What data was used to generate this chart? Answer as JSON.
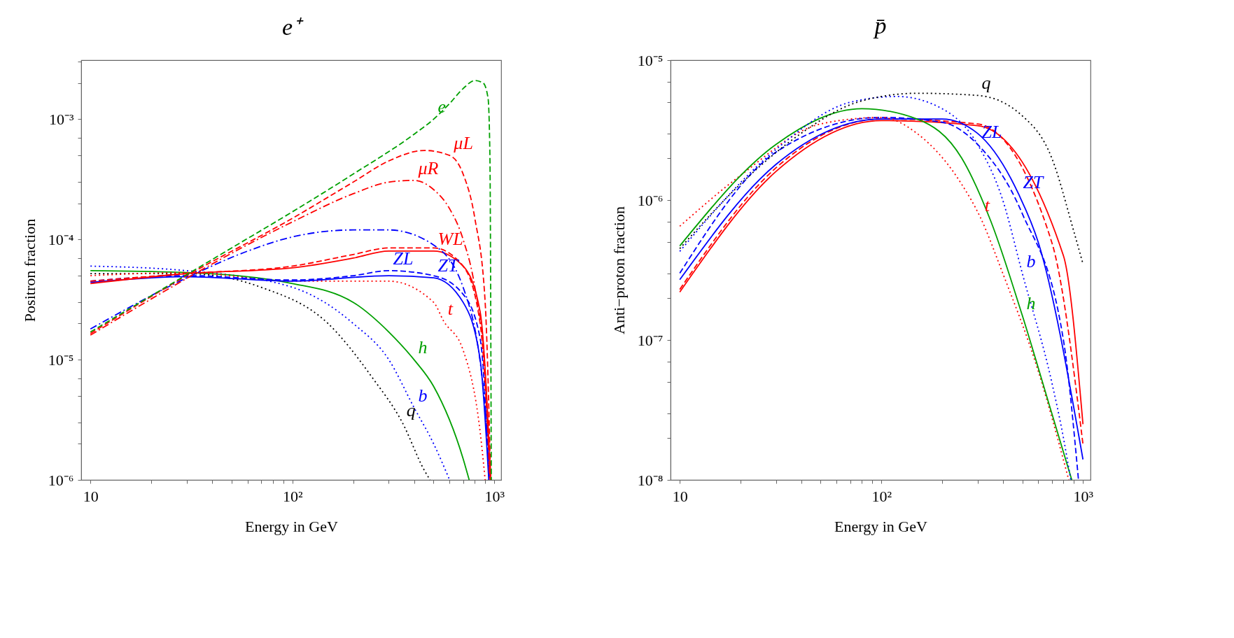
{
  "chart_data": [
    {
      "type": "line",
      "title": "e⁺",
      "xlabel": "Energy in GeV",
      "ylabel": "Positron fraction",
      "log": "xy",
      "grid": false,
      "marker": "none",
      "xlim": [
        9,
        1080
      ],
      "ylim": [
        1e-06,
        0.0031
      ],
      "xticks": [
        {
          "value": 10,
          "label": "10"
        },
        {
          "value": 20,
          "label": null
        },
        {
          "value": 30,
          "label": null
        },
        {
          "value": 40,
          "label": null
        },
        {
          "value": 50,
          "label": null
        },
        {
          "value": 60,
          "label": null
        },
        {
          "value": 70,
          "label": null
        },
        {
          "value": 80,
          "label": null
        },
        {
          "value": 90,
          "label": null
        },
        {
          "value": 100,
          "label": "10²"
        },
        {
          "value": 200,
          "label": null
        },
        {
          "value": 300,
          "label": null
        },
        {
          "value": 400,
          "label": null
        },
        {
          "value": 500,
          "label": null
        },
        {
          "value": 600,
          "label": null
        },
        {
          "value": 700,
          "label": null
        },
        {
          "value": 800,
          "label": null
        },
        {
          "value": 900,
          "label": null
        },
        {
          "value": 1000,
          "label": "10³"
        }
      ],
      "yticks": [
        {
          "value": 1e-06,
          "label": "10⁻⁶"
        },
        {
          "value": 2e-06,
          "label": null
        },
        {
          "value": 3e-06,
          "label": null
        },
        {
          "value": 5e-06,
          "label": null
        },
        {
          "value": 7e-06,
          "label": null
        },
        {
          "value": 1e-05,
          "label": "10⁻⁵"
        },
        {
          "value": 2e-05,
          "label": null
        },
        {
          "value": 3e-05,
          "label": null
        },
        {
          "value": 5e-05,
          "label": null
        },
        {
          "value": 7e-05,
          "label": null
        },
        {
          "value": 0.0001,
          "label": "10⁻⁴"
        },
        {
          "value": 0.0002,
          "label": null
        },
        {
          "value": 0.0003,
          "label": null
        },
        {
          "value": 0.0005,
          "label": null
        },
        {
          "value": 0.0007,
          "label": null
        },
        {
          "value": 0.001,
          "label": "10⁻³"
        },
        {
          "value": 0.002,
          "label": null
        },
        {
          "value": 0.003,
          "label": null
        }
      ],
      "series": [
        {
          "color": "#00a000",
          "line_style": "dashed",
          "x": [
            10,
            20,
            50,
            100,
            200,
            400,
            500,
            600,
            700,
            800,
            880,
            930,
            950,
            965
          ],
          "values": [
            1.7e-05,
            3.4e-05,
            8.5e-05,
            0.00017,
            0.00035,
            0.00075,
            0.001,
            0.00135,
            0.0018,
            0.0021,
            0.002,
            0.0015,
            0.0005,
            1e-06
          ]
        },
        {
          "color": "#ff0000",
          "line_style": "dashed",
          "x": [
            10,
            30,
            100,
            200,
            300,
            450,
            600,
            700,
            800,
            900,
            958
          ],
          "values": [
            1.65e-05,
            5e-05,
            0.00015,
            0.0003,
            0.00045,
            0.00055,
            0.0005,
            0.00035,
            0.00015,
            3e-05,
            1e-06
          ]
        },
        {
          "color": "#ff0000",
          "line_style": "dashdot",
          "x": [
            10,
            100,
            200,
            300,
            400,
            500,
            600,
            700,
            800,
            900,
            948
          ],
          "values": [
            1.6e-05,
            0.00014,
            0.00024,
            0.0003,
            0.00031,
            0.00026,
            0.00018,
            0.0001,
            4e-05,
            8e-06,
            1e-06
          ]
        },
        {
          "color": "#0000ff",
          "line_style": "dashdot",
          "x": [
            10,
            30,
            60,
            100,
            200,
            300,
            500,
            700,
            900,
            942
          ],
          "values": [
            1.8e-05,
            4.8e-05,
            8e-05,
            0.000105,
            0.00012,
            0.00012,
            9e-05,
            4e-05,
            4e-06,
            1e-06
          ]
        },
        {
          "color": "#ff0000",
          "line_style": "dashed",
          "x": [
            10,
            30,
            100,
            200,
            300,
            500,
            700,
            850,
            953
          ],
          "values": [
            4.5e-05,
            5.2e-05,
            6e-05,
            7.5e-05,
            8.5e-05,
            8.5e-05,
            6e-05,
            2e-05,
            1e-06
          ]
        },
        {
          "color": "#ff0000",
          "line_style": "solid",
          "x": [
            10,
            30,
            100,
            200,
            300,
            500,
            700,
            850,
            960
          ],
          "values": [
            4.3e-05,
            5.2e-05,
            5.8e-05,
            7e-05,
            8e-05,
            8e-05,
            6e-05,
            2.5e-05,
            1e-06
          ]
        },
        {
          "color": "#0000ff",
          "line_style": "dashed",
          "x": [
            10,
            30,
            100,
            200,
            300,
            500,
            700,
            850,
            945
          ],
          "values": [
            4.5e-05,
            5e-05,
            4.6e-05,
            5e-05,
            5.5e-05,
            5e-05,
            3.5e-05,
            1.5e-05,
            1e-06
          ]
        },
        {
          "color": "#0000ff",
          "line_style": "solid",
          "x": [
            10,
            30,
            100,
            300,
            500,
            700,
            850,
            938
          ],
          "values": [
            4.4e-05,
            4.9e-05,
            4.5e-05,
            5e-05,
            4.8e-05,
            3e-05,
            1e-05,
            1e-06
          ]
        },
        {
          "color": "#ff0000",
          "line_style": "dotted",
          "x": [
            10,
            30,
            100,
            300,
            500,
            560,
            700,
            850,
            900
          ],
          "values": [
            5e-05,
            5.3e-05,
            4.5e-05,
            4.5e-05,
            3e-05,
            2.1e-05,
            1.2e-05,
            2.5e-06,
            1e-06
          ]
        },
        {
          "color": "#00a000",
          "line_style": "solid",
          "x": [
            10,
            30,
            100,
            200,
            300,
            400,
            500,
            700,
            750
          ],
          "values": [
            5.5e-05,
            5.3e-05,
            4.3e-05,
            3e-05,
            1.7e-05,
            1e-05,
            6e-06,
            1.5e-06,
            1e-06
          ]
        },
        {
          "color": "#0000ff",
          "line_style": "dotted",
          "x": [
            10,
            30,
            100,
            200,
            300,
            400,
            500,
            600
          ],
          "values": [
            6e-05,
            5.5e-05,
            4e-05,
            2e-05,
            1e-05,
            4e-06,
            2e-06,
            1e-06
          ]
        },
        {
          "color": "#000000",
          "line_style": "dotted",
          "x": [
            10,
            30,
            70,
            150,
            250,
            350,
            450,
            480
          ],
          "values": [
            5.2e-05,
            5.2e-05,
            4e-05,
            2e-05,
            7e-06,
            3e-06,
            1.2e-06,
            1e-06
          ]
        }
      ],
      "annotations": [
        {
          "text": "e",
          "x": 500,
          "y": 0.001
        },
        {
          "text": "μL",
          "x": 600,
          "y": 0.0005
        },
        {
          "text": "μR",
          "x": 400,
          "y": 0.00031
        },
        {
          "text": "WL",
          "x": 500,
          "y": 8e-05
        },
        {
          "text": "ZL",
          "x": 300,
          "y": 5.5e-05
        },
        {
          "text": "ZT",
          "x": 500,
          "y": 4.8e-05
        },
        {
          "text": "t",
          "x": 560,
          "y": 2.1e-05
        },
        {
          "text": "h",
          "x": 400,
          "y": 1e-05
        },
        {
          "text": "b",
          "x": 400,
          "y": 4e-06
        },
        {
          "text": "q",
          "x": 350,
          "y": 3e-06
        }
      ]
    },
    {
      "type": "line",
      "title": "p̄",
      "xlabel": "Energy in GeV",
      "ylabel": "Anti−proton fraction",
      "log": "xy",
      "grid": false,
      "marker": "none",
      "xlim": [
        9,
        1090
      ],
      "ylim": [
        1e-08,
        1e-05
      ],
      "xticks": [
        {
          "value": 10,
          "label": "10"
        },
        {
          "value": 20,
          "label": null
        },
        {
          "value": 30,
          "label": null
        },
        {
          "value": 40,
          "label": null
        },
        {
          "value": 50,
          "label": null
        },
        {
          "value": 60,
          "label": null
        },
        {
          "value": 70,
          "label": null
        },
        {
          "value": 80,
          "label": null
        },
        {
          "value": 90,
          "label": null
        },
        {
          "value": 100,
          "label": "10²"
        },
        {
          "value": 200,
          "label": null
        },
        {
          "value": 300,
          "label": null
        },
        {
          "value": 400,
          "label": null
        },
        {
          "value": 500,
          "label": null
        },
        {
          "value": 600,
          "label": null
        },
        {
          "value": 700,
          "label": null
        },
        {
          "value": 800,
          "label": null
        },
        {
          "value": 900,
          "label": null
        },
        {
          "value": 1000,
          "label": "10³"
        }
      ],
      "yticks": [
        {
          "value": 1e-08,
          "label": "10⁻⁸"
        },
        {
          "value": 2e-08,
          "label": null
        },
        {
          "value": 3e-08,
          "label": null
        },
        {
          "value": 5e-08,
          "label": null
        },
        {
          "value": 7e-08,
          "label": null
        },
        {
          "value": 1e-07,
          "label": "10⁻⁷"
        },
        {
          "value": 2e-07,
          "label": null
        },
        {
          "value": 3e-07,
          "label": null
        },
        {
          "value": 5e-07,
          "label": null
        },
        {
          "value": 7e-07,
          "label": null
        },
        {
          "value": 1e-06,
          "label": "10⁻⁶"
        },
        {
          "value": 2e-06,
          "label": null
        },
        {
          "value": 3e-06,
          "label": null
        },
        {
          "value": 5e-06,
          "label": null
        },
        {
          "value": 7e-06,
          "label": null
        },
        {
          "value": 1e-05,
          "label": "10⁻⁵"
        }
      ],
      "series": [
        {
          "color": "#000000",
          "line_style": "dotted",
          "x": [
            10,
            20,
            40,
            70,
            100,
            150,
            300,
            500,
            700,
            900,
            1000
          ],
          "values": [
            4.5e-07,
            1.3e-06,
            3e-06,
            4.8e-06,
            5.5e-06,
            5.8e-06,
            5.6e-06,
            4e-06,
            2e-06,
            6e-07,
            3.5e-07
          ]
        },
        {
          "color": "#0000ff",
          "line_style": "dotted",
          "x": [
            10,
            30,
            70,
            120,
            200,
            300,
            400,
            500,
            700,
            800,
            870
          ],
          "values": [
            4.3e-07,
            2.3e-06,
            5e-06,
            5.5e-06,
            4.5e-06,
            2.5e-06,
            1e-06,
            3e-07,
            5e-08,
            2e-08,
            1e-08
          ]
        },
        {
          "color": "#00a000",
          "line_style": "solid",
          "x": [
            10,
            30,
            80,
            150,
            250,
            350,
            500,
            700,
            880
          ],
          "values": [
            4.7e-07,
            2.5e-06,
            4.5e-06,
            3.8e-06,
            2e-06,
            7e-07,
            1.5e-07,
            3e-08,
            1e-08
          ]
        },
        {
          "color": "#ff0000",
          "line_style": "dotted",
          "x": [
            10,
            20,
            50,
            100,
            150,
            250,
            310,
            400,
            600,
            850
          ],
          "values": [
            6.5e-07,
            1.5e-06,
            3.5e-06,
            3.9e-06,
            3e-06,
            1.3e-06,
            7.5e-07,
            3e-07,
            6e-08,
            1e-08
          ]
        },
        {
          "color": "#0000ff",
          "line_style": "dashed",
          "x": [
            10,
            30,
            100,
            200,
            300,
            500,
            800,
            950
          ],
          "values": [
            3e-07,
            2.2e-06,
            3.9e-06,
            3.6e-06,
            2.5e-06,
            8e-07,
            1e-07,
            1e-08
          ]
        },
        {
          "color": "#0000ff",
          "line_style": "solid",
          "x": [
            10,
            30,
            100,
            200,
            300,
            480,
            600,
            1000
          ],
          "values": [
            2.7e-07,
            1.8e-06,
            3.8e-06,
            3.8e-06,
            3e-06,
            1.1e-06,
            5e-07,
            1.4e-08
          ]
        },
        {
          "color": "#ff0000",
          "line_style": "dashed",
          "x": [
            10,
            30,
            100,
            300,
            700,
            1000
          ],
          "values": [
            2.3e-07,
            1.7e-06,
            3.8e-06,
            3.5e-06,
            5e-07,
            1.8e-08
          ]
        },
        {
          "color": "#ff0000",
          "line_style": "solid",
          "x": [
            10,
            30,
            100,
            300,
            800,
            1000
          ],
          "values": [
            2.2e-07,
            1.6e-06,
            3.7e-06,
            3.4e-06,
            4e-07,
            2.5e-08
          ]
        }
      ],
      "annotations": [
        {
          "text": "q",
          "x": 300,
          "y": 5.6e-06
        },
        {
          "text": "ZL",
          "x": 300,
          "y": 2.5e-06
        },
        {
          "text": "ZT",
          "x": 480,
          "y": 1.1e-06
        },
        {
          "text": "t",
          "x": 310,
          "y": 7.5e-07
        },
        {
          "text": "b",
          "x": 500,
          "y": 3e-07
        },
        {
          "text": "h",
          "x": 500,
          "y": 1.5e-07
        }
      ]
    }
  ]
}
